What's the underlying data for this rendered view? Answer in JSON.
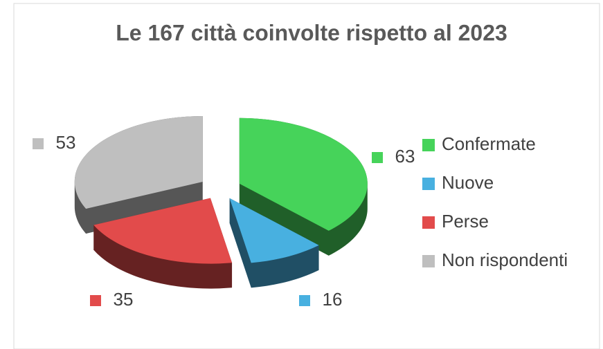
{
  "chart_data": {
    "type": "pie",
    "title": "Le 167 città coinvolte rispetto al 2023",
    "categories": [
      "Confermate",
      "Nuove",
      "Perse",
      "Non rispondenti"
    ],
    "values": [
      63,
      16,
      35,
      53
    ],
    "colors": [
      "#46d35a",
      "#48b0e0",
      "#e24b4b",
      "#bfbfbf"
    ],
    "legend": "right"
  }
}
